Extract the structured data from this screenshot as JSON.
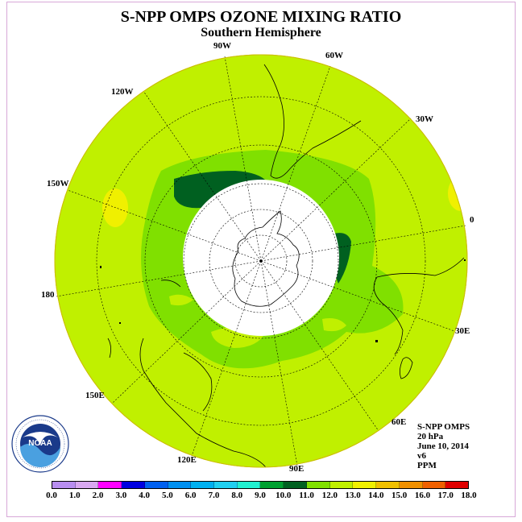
{
  "title": "S-NPP OMPS OZONE MIXING RATIO",
  "subtitle": "Southern Hemisphere",
  "longitude_labels": {
    "lon_90w": "90W",
    "lon_60w": "60W",
    "lon_120w": "120W",
    "lon_30w": "30W",
    "lon_150w": "150W",
    "lon_0": "0",
    "lon_180": "180",
    "lon_30e": "30E",
    "lon_150e": "150E",
    "lon_60e": "60E",
    "lon_120e": "120E",
    "lon_90e": "90E"
  },
  "info": {
    "instrument": "S-NPP OMPS",
    "pressure": "20 hPa",
    "date": "June 10, 2014",
    "version": "v6",
    "units": "PPM"
  },
  "logo_text": "NOAA",
  "colorbar": {
    "ticks": [
      "0.0",
      "1.0",
      "2.0",
      "3.0",
      "4.0",
      "5.0",
      "6.0",
      "7.0",
      "8.0",
      "9.0",
      "10.0",
      "11.0",
      "12.0",
      "13.0",
      "14.0",
      "15.0",
      "16.0",
      "17.0",
      "18.0"
    ],
    "colors": [
      "#b88ef0",
      "#d8a8f0",
      "#ff00ff",
      "#0000e0",
      "#0060f0",
      "#0090f0",
      "#00b0f0",
      "#20d0f0",
      "#20f0d0",
      "#00a030",
      "#006020",
      "#80e000",
      "#c0f000",
      "#f0f000",
      "#f0c000",
      "#f09000",
      "#f06000",
      "#e00000",
      "#905030"
    ]
  },
  "chart_data": {
    "type": "heatmap",
    "title": "S-NPP OMPS OZONE MIXING RATIO",
    "subtitle": "Southern Hemisphere",
    "units": "PPM",
    "level": "20 hPa",
    "date": "June 10, 2014",
    "projection": "south polar stereographic",
    "color_scale_min": 0.0,
    "color_scale_max": 18.0,
    "color_scale_step": 1.0,
    "dominant_range_ppm": [
      11.0,
      12.0
    ],
    "ring_near_pole_range_ppm": [
      10.0,
      11.0
    ],
    "max_patches_range_ppm": [
      9.0,
      10.0
    ],
    "small_high_patches_range_ppm": [
      12.0,
      13.0
    ],
    "polar_night": "no data (white)"
  }
}
